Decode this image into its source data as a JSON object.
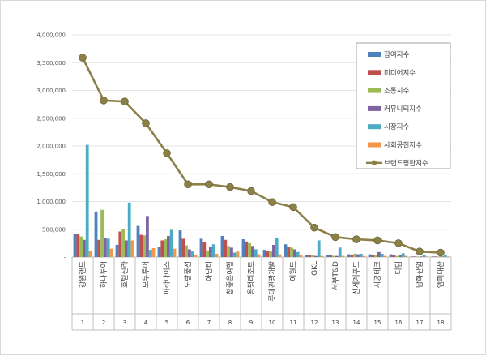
{
  "chart_data": {
    "type": "bar",
    "title": "",
    "xlabel": "",
    "ylabel": "",
    "ylim": [
      0,
      4000000
    ],
    "yticks": [
      "-",
      "500,000",
      "1,000,000",
      "1,500,000",
      "2,000,000",
      "2,500,000",
      "3,000,000",
      "3,500,000",
      "4,000,000"
    ],
    "ytick_values": [
      0,
      500000,
      1000000,
      1500000,
      2000000,
      2500000,
      3000000,
      3500000,
      4000000
    ],
    "legend_position": "top-right",
    "categories": [
      "강원랜드",
      "하나투어",
      "호텔신라",
      "모두투어",
      "파라다이스",
      "노랑풍선",
      "아난티",
      "참좋은여행",
      "용평리조트",
      "롯데관광개발",
      "이월드",
      "GKL",
      "서부T&D",
      "신세계푸드",
      "시공테크",
      "디딤",
      "남화산업",
      "엠피대산"
    ],
    "row_numbers": [
      "1",
      "2",
      "3",
      "4",
      "5",
      "6",
      "7",
      "8",
      "9",
      "10",
      "11",
      "12",
      "13",
      "14",
      "15",
      "16",
      "17",
      "18"
    ],
    "series": [
      {
        "name": "참여지수",
        "color": "#4f81bd",
        "values": [
          420000,
          820000,
          220000,
          560000,
          180000,
          480000,
          330000,
          380000,
          320000,
          130000,
          230000,
          40000,
          40000,
          50000,
          50000,
          50000,
          10000,
          10000
        ]
      },
      {
        "name": "미디어지수",
        "color": "#c0504d",
        "values": [
          410000,
          310000,
          460000,
          400000,
          300000,
          330000,
          270000,
          310000,
          280000,
          110000,
          190000,
          40000,
          30000,
          40000,
          40000,
          40000,
          10000,
          10000
        ]
      },
      {
        "name": "소통지수",
        "color": "#9bbb59",
        "values": [
          370000,
          850000,
          510000,
          390000,
          320000,
          210000,
          120000,
          200000,
          250000,
          100000,
          170000,
          30000,
          20000,
          60000,
          30000,
          20000,
          10000,
          10000
        ]
      },
      {
        "name": "커뮤니티지수",
        "color": "#8064a2",
        "values": [
          310000,
          350000,
          300000,
          740000,
          380000,
          140000,
          190000,
          170000,
          200000,
          220000,
          140000,
          20000,
          20000,
          50000,
          90000,
          30000,
          10000,
          10000
        ]
      },
      {
        "name": "시장지수",
        "color": "#4bacc6",
        "values": [
          2020000,
          330000,
          980000,
          130000,
          490000,
          100000,
          230000,
          80000,
          140000,
          350000,
          90000,
          300000,
          170000,
          60000,
          60000,
          70000,
          40000,
          40000
        ]
      },
      {
        "name": "사회공헌지수",
        "color": "#f79646",
        "values": [
          110000,
          150000,
          300000,
          160000,
          150000,
          40000,
          60000,
          100000,
          50000,
          50000,
          40000,
          20000,
          20000,
          20000,
          20000,
          20000,
          10000,
          10000
        ]
      }
    ],
    "line_series": {
      "name": "브랜드평판지수",
      "color": "#8b8048",
      "values": [
        3590000,
        2820000,
        2800000,
        2410000,
        1870000,
        1310000,
        1310000,
        1260000,
        1190000,
        990000,
        900000,
        530000,
        360000,
        320000,
        300000,
        250000,
        100000,
        80000
      ]
    }
  }
}
